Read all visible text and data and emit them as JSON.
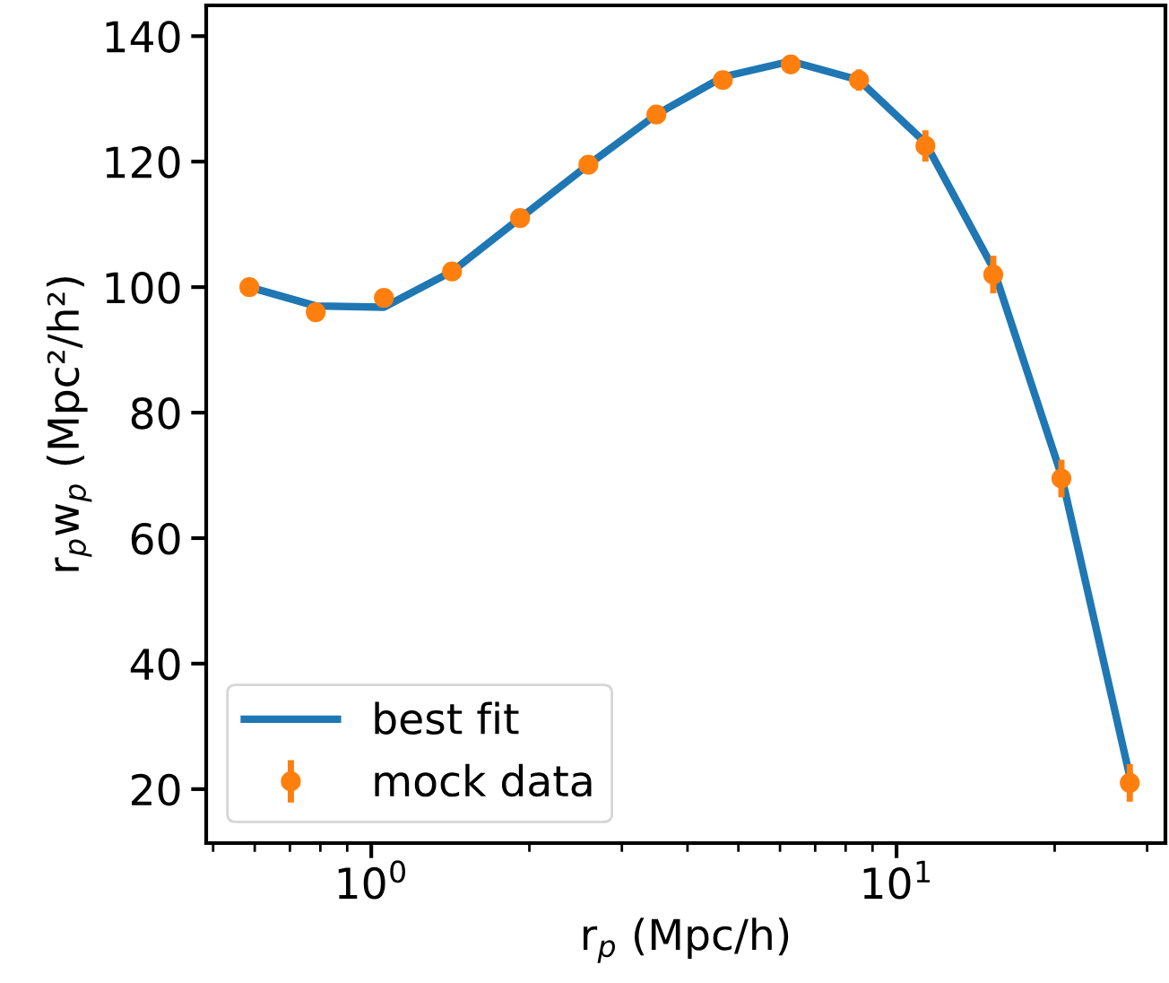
{
  "chart_data": {
    "type": "line",
    "xlabel": "r$_{p}$ (Mpc/h)",
    "ylabel": "r$_{p}$w$_{p}$ (Mpc²/h²)",
    "log": "x",
    "xlim": [
      0.485,
      32.5
    ],
    "ylim": [
      11.4,
      144.9
    ],
    "xticks": [
      {
        "value": 1,
        "label": "10$^{0}$"
      },
      {
        "value": 10,
        "label": "10$^{1}$"
      }
    ],
    "yticks": [
      20,
      40,
      60,
      80,
      100,
      120,
      140
    ],
    "legend": "bottom left",
    "grid": false,
    "series": [
      {
        "name": "best fit",
        "color": "#1f77b4",
        "marker": "none",
        "x": [
          0.586,
          0.784,
          1.057,
          1.425,
          1.92,
          2.59,
          3.49,
          4.67,
          6.29,
          8.48,
          11.35,
          15.28,
          20.6,
          27.8
        ],
        "values": [
          100,
          97,
          96.8,
          102.5,
          111,
          119.5,
          127.5,
          133.5,
          136,
          133,
          123,
          103,
          70,
          22
        ]
      },
      {
        "name": "mock data",
        "type": "scatter",
        "color": "#ff7f0e",
        "marker": "circle",
        "x": [
          0.586,
          0.784,
          1.057,
          1.425,
          1.92,
          2.59,
          3.49,
          4.67,
          6.29,
          8.48,
          11.35,
          15.28,
          20.6,
          27.8
        ],
        "values": [
          100,
          96,
          98.3,
          102.5,
          111,
          119.5,
          127.5,
          133,
          135.5,
          133,
          122.5,
          102,
          69.5,
          21
        ],
        "errors": [
          1,
          1,
          1,
          1,
          1,
          1,
          1,
          1.3,
          1.5,
          1.7,
          2.5,
          3,
          3,
          3
        ]
      }
    ]
  }
}
